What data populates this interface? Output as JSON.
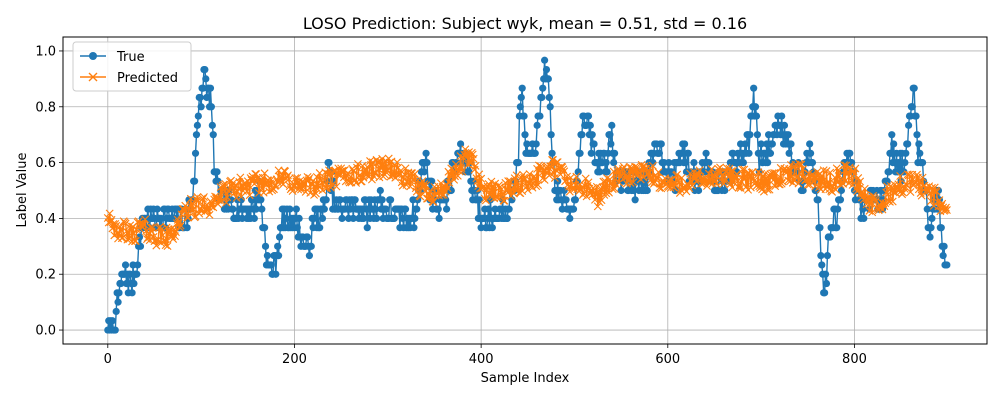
{
  "chart_data": {
    "type": "line",
    "title": "LOSO Prediction: Subject wyk, mean = 0.51, std = 0.16",
    "xlabel": "Sample Index",
    "ylabel": "Label Value",
    "xlim": [
      -48,
      942
    ],
    "ylim": [
      -0.05,
      1.05
    ],
    "xticks": [
      0,
      200,
      400,
      600,
      800
    ],
    "yticks": [
      0.0,
      0.2,
      0.4,
      0.6,
      0.8,
      1.0
    ],
    "xtick_labels": [
      "0",
      "200",
      "400",
      "600",
      "800"
    ],
    "ytick_labels": [
      "0.0",
      "0.2",
      "0.4",
      "0.6",
      "0.8",
      "1.0"
    ],
    "grid": true,
    "legend_position": "upper-left",
    "n_samples": 900,
    "series": [
      {
        "name": "True",
        "color": "#1f77b4",
        "marker": "circle",
        "keypoints": [
          [
            0,
            0.0
          ],
          [
            8,
            0.0
          ],
          [
            12,
            0.15
          ],
          [
            18,
            0.2
          ],
          [
            25,
            0.17
          ],
          [
            30,
            0.2
          ],
          [
            35,
            0.35
          ],
          [
            40,
            0.4
          ],
          [
            70,
            0.4
          ],
          [
            85,
            0.4
          ],
          [
            92,
            0.5
          ],
          [
            97,
            0.8
          ],
          [
            103,
            0.9
          ],
          [
            110,
            0.83
          ],
          [
            115,
            0.55
          ],
          [
            120,
            0.47
          ],
          [
            140,
            0.43
          ],
          [
            155,
            0.43
          ],
          [
            162,
            0.5
          ],
          [
            168,
            0.35
          ],
          [
            172,
            0.22
          ],
          [
            178,
            0.22
          ],
          [
            183,
            0.3
          ],
          [
            188,
            0.4
          ],
          [
            200,
            0.4
          ],
          [
            208,
            0.32
          ],
          [
            215,
            0.3
          ],
          [
            222,
            0.4
          ],
          [
            232,
            0.42
          ],
          [
            236,
            0.57
          ],
          [
            245,
            0.43
          ],
          [
            260,
            0.45
          ],
          [
            280,
            0.42
          ],
          [
            290,
            0.47
          ],
          [
            300,
            0.42
          ],
          [
            320,
            0.4
          ],
          [
            330,
            0.42
          ],
          [
            340,
            0.63
          ],
          [
            345,
            0.5
          ],
          [
            355,
            0.45
          ],
          [
            365,
            0.5
          ],
          [
            375,
            0.62
          ],
          [
            385,
            0.6
          ],
          [
            393,
            0.5
          ],
          [
            400,
            0.4
          ],
          [
            420,
            0.42
          ],
          [
            428,
            0.45
          ],
          [
            435,
            0.5
          ],
          [
            440,
            0.65
          ],
          [
            443,
            0.88
          ],
          [
            447,
            0.68
          ],
          [
            453,
            0.6
          ],
          [
            460,
            0.7
          ],
          [
            464,
            0.8
          ],
          [
            468,
            0.97
          ],
          [
            472,
            0.85
          ],
          [
            476,
            0.65
          ],
          [
            480,
            0.5
          ],
          [
            490,
            0.45
          ],
          [
            495,
            0.42
          ],
          [
            502,
            0.5
          ],
          [
            508,
            0.75
          ],
          [
            516,
            0.72
          ],
          [
            523,
            0.6
          ],
          [
            535,
            0.62
          ],
          [
            540,
            0.68
          ],
          [
            545,
            0.55
          ],
          [
            555,
            0.55
          ],
          [
            565,
            0.52
          ],
          [
            580,
            0.55
          ],
          [
            588,
            0.68
          ],
          [
            595,
            0.62
          ],
          [
            605,
            0.52
          ],
          [
            615,
            0.65
          ],
          [
            625,
            0.55
          ],
          [
            635,
            0.55
          ],
          [
            642,
            0.62
          ],
          [
            650,
            0.52
          ],
          [
            660,
            0.55
          ],
          [
            670,
            0.6
          ],
          [
            680,
            0.62
          ],
          [
            688,
            0.7
          ],
          [
            692,
            0.85
          ],
          [
            698,
            0.6
          ],
          [
            710,
            0.65
          ],
          [
            718,
            0.75
          ],
          [
            728,
            0.7
          ],
          [
            735,
            0.58
          ],
          [
            745,
            0.52
          ],
          [
            752,
            0.65
          ],
          [
            758,
            0.55
          ],
          [
            762,
            0.4
          ],
          [
            765,
            0.22
          ],
          [
            768,
            0.13
          ],
          [
            772,
            0.3
          ],
          [
            778,
            0.4
          ],
          [
            785,
            0.45
          ],
          [
            792,
            0.62
          ],
          [
            798,
            0.55
          ],
          [
            805,
            0.45
          ],
          [
            815,
            0.45
          ],
          [
            822,
            0.5
          ],
          [
            830,
            0.45
          ],
          [
            835,
            0.55
          ],
          [
            840,
            0.65
          ],
          [
            848,
            0.58
          ],
          [
            855,
            0.6
          ],
          [
            860,
            0.78
          ],
          [
            864,
            0.85
          ],
          [
            868,
            0.65
          ],
          [
            875,
            0.55
          ],
          [
            880,
            0.35
          ],
          [
            885,
            0.45
          ],
          [
            890,
            0.48
          ],
          [
            895,
            0.3
          ],
          [
            900,
            0.2
          ]
        ]
      },
      {
        "name": "Predicted",
        "color": "#ff7f0e",
        "marker": "x",
        "keypoints": [
          [
            0,
            0.42
          ],
          [
            5,
            0.4
          ],
          [
            10,
            0.32
          ],
          [
            15,
            0.36
          ],
          [
            25,
            0.34
          ],
          [
            35,
            0.37
          ],
          [
            50,
            0.34
          ],
          [
            65,
            0.33
          ],
          [
            75,
            0.38
          ],
          [
            85,
            0.43
          ],
          [
            95,
            0.44
          ],
          [
            110,
            0.45
          ],
          [
            125,
            0.49
          ],
          [
            140,
            0.51
          ],
          [
            155,
            0.52
          ],
          [
            170,
            0.53
          ],
          [
            190,
            0.54
          ],
          [
            210,
            0.51
          ],
          [
            230,
            0.53
          ],
          [
            250,
            0.55
          ],
          [
            270,
            0.56
          ],
          [
            290,
            0.58
          ],
          [
            300,
            0.59
          ],
          [
            320,
            0.54
          ],
          [
            340,
            0.5
          ],
          [
            355,
            0.49
          ],
          [
            370,
            0.55
          ],
          [
            385,
            0.62
          ],
          [
            392,
            0.6
          ],
          [
            402,
            0.5
          ],
          [
            420,
            0.49
          ],
          [
            440,
            0.52
          ],
          [
            460,
            0.55
          ],
          [
            475,
            0.58
          ],
          [
            485,
            0.57
          ],
          [
            495,
            0.52
          ],
          [
            510,
            0.51
          ],
          [
            525,
            0.48
          ],
          [
            540,
            0.53
          ],
          [
            560,
            0.56
          ],
          [
            580,
            0.56
          ],
          [
            600,
            0.52
          ],
          [
            620,
            0.53
          ],
          [
            640,
            0.54
          ],
          [
            660,
            0.55
          ],
          [
            680,
            0.54
          ],
          [
            700,
            0.53
          ],
          [
            720,
            0.55
          ],
          [
            740,
            0.56
          ],
          [
            760,
            0.54
          ],
          [
            775,
            0.53
          ],
          [
            790,
            0.56
          ],
          [
            800,
            0.55
          ],
          [
            815,
            0.46
          ],
          [
            825,
            0.43
          ],
          [
            835,
            0.48
          ],
          [
            850,
            0.52
          ],
          [
            865,
            0.53
          ],
          [
            880,
            0.5
          ],
          [
            890,
            0.46
          ],
          [
            900,
            0.43
          ]
        ]
      }
    ]
  }
}
